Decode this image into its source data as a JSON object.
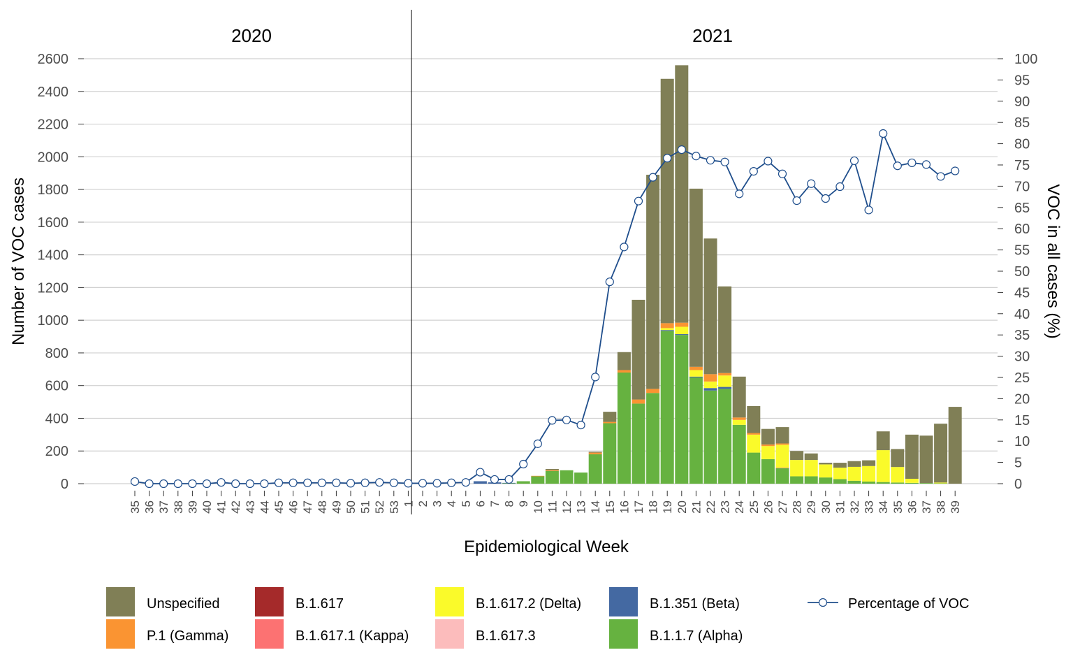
{
  "chart_data": {
    "type": "bar",
    "stacked": true,
    "secondary_series_type": "line",
    "year_labels": [
      "2020",
      "2021"
    ],
    "xlabel": "Epidemiological Week",
    "ylabel": "Number of VOC cases",
    "y2label": "VOC in all cases (%)",
    "ylim": [
      0,
      2600
    ],
    "yticks": [
      0,
      200,
      400,
      600,
      800,
      1000,
      1200,
      1400,
      1600,
      1800,
      2000,
      2200,
      2400,
      2600
    ],
    "y2lim": [
      0,
      100
    ],
    "y2ticks": [
      0,
      5,
      10,
      15,
      20,
      25,
      30,
      35,
      40,
      45,
      50,
      55,
      60,
      65,
      70,
      75,
      80,
      85,
      90,
      95,
      100
    ],
    "grid": true,
    "legend_position": "bottom",
    "categories": [
      "35",
      "36",
      "37",
      "38",
      "39",
      "40",
      "41",
      "42",
      "43",
      "44",
      "45",
      "46",
      "47",
      "48",
      "49",
      "50",
      "51",
      "52",
      "53",
      "1",
      "2",
      "3",
      "4",
      "5",
      "6",
      "7",
      "8",
      "9",
      "10",
      "11",
      "12",
      "13",
      "14",
      "15",
      "16",
      "17",
      "18",
      "19",
      "20",
      "21",
      "22",
      "23",
      "24",
      "25",
      "26",
      "27",
      "28",
      "29",
      "30",
      "31",
      "32",
      "33",
      "34",
      "35",
      "36",
      "37",
      "38",
      "39"
    ],
    "series": [
      {
        "name": "B.1.1.7 (Alpha)",
        "color": "#66b240",
        "values": [
          0,
          0,
          0,
          0,
          0,
          0,
          0,
          0,
          0,
          0,
          0,
          0,
          0,
          0,
          0,
          0,
          0,
          0,
          0,
          0,
          0,
          0,
          0,
          0,
          0,
          0,
          2,
          15,
          45,
          78,
          82,
          68,
          180,
          370,
          680,
          490,
          555,
          935,
          910,
          650,
          570,
          580,
          360,
          190,
          150,
          95,
          45,
          45,
          38,
          28,
          18,
          13,
          10,
          7,
          5,
          4,
          2,
          0
        ]
      },
      {
        "name": "B.1.351 (Beta)",
        "color": "#4469a2",
        "values": [
          0,
          0,
          0,
          0,
          0,
          0,
          0,
          0,
          0,
          0,
          0,
          0,
          0,
          0,
          0,
          0,
          0,
          0,
          0,
          0,
          0,
          0,
          0,
          0,
          15,
          8,
          3,
          0,
          0,
          0,
          0,
          0,
          0,
          0,
          0,
          0,
          0,
          5,
          5,
          5,
          15,
          12,
          0,
          0,
          0,
          0,
          0,
          0,
          0,
          0,
          0,
          0,
          0,
          0,
          0,
          0,
          0,
          0
        ]
      },
      {
        "name": "B.1.617",
        "color": "#a52a2a",
        "values": [
          0,
          0,
          0,
          0,
          0,
          0,
          0,
          0,
          0,
          0,
          0,
          0,
          0,
          0,
          0,
          0,
          0,
          0,
          0,
          0,
          0,
          0,
          0,
          0,
          0,
          0,
          0,
          0,
          0,
          0,
          0,
          0,
          0,
          0,
          0,
          0,
          0,
          0,
          0,
          0,
          0,
          0,
          0,
          0,
          0,
          0,
          0,
          0,
          0,
          0,
          0,
          0,
          0,
          0,
          0,
          0,
          0,
          0
        ]
      },
      {
        "name": "B.1.617.1 (Kappa)",
        "color": "#fc7272",
        "values": [
          0,
          0,
          0,
          0,
          0,
          0,
          0,
          0,
          0,
          0,
          0,
          0,
          0,
          0,
          0,
          0,
          0,
          0,
          0,
          0,
          0,
          0,
          0,
          0,
          0,
          0,
          0,
          0,
          0,
          0,
          0,
          0,
          0,
          0,
          0,
          0,
          0,
          0,
          0,
          0,
          0,
          0,
          0,
          0,
          0,
          3,
          0,
          0,
          0,
          0,
          0,
          0,
          0,
          0,
          0,
          0,
          0,
          0
        ]
      },
      {
        "name": "B.1.617.2 (Delta)",
        "color": "#fafa2a",
        "values": [
          0,
          0,
          0,
          0,
          0,
          0,
          0,
          0,
          0,
          0,
          0,
          0,
          0,
          0,
          0,
          0,
          0,
          0,
          0,
          0,
          0,
          0,
          0,
          0,
          0,
          0,
          0,
          0,
          0,
          0,
          0,
          0,
          0,
          0,
          0,
          0,
          0,
          12,
          45,
          40,
          40,
          70,
          30,
          110,
          80,
          140,
          100,
          100,
          80,
          70,
          85,
          95,
          195,
          95,
          25,
          0,
          5,
          0
        ]
      },
      {
        "name": "B.1.617.3",
        "color": "#fcbcbc",
        "values": [
          0,
          0,
          0,
          0,
          0,
          0,
          0,
          0,
          0,
          0,
          0,
          0,
          0,
          0,
          0,
          0,
          0,
          0,
          0,
          0,
          0,
          0,
          0,
          0,
          0,
          0,
          0,
          0,
          0,
          0,
          0,
          0,
          0,
          0,
          0,
          0,
          0,
          0,
          0,
          0,
          0,
          0,
          0,
          0,
          0,
          0,
          0,
          0,
          0,
          0,
          0,
          0,
          0,
          0,
          0,
          0,
          0,
          0
        ]
      },
      {
        "name": "P.1 (Gamma)",
        "color": "#fa9432",
        "values": [
          0,
          0,
          0,
          0,
          0,
          0,
          0,
          0,
          0,
          0,
          0,
          0,
          0,
          0,
          0,
          0,
          0,
          0,
          0,
          0,
          0,
          0,
          0,
          0,
          0,
          0,
          0,
          0,
          3,
          5,
          0,
          0,
          10,
          8,
          15,
          25,
          25,
          30,
          25,
          20,
          45,
          15,
          15,
          10,
          10,
          8,
          0,
          0,
          0,
          0,
          0,
          0,
          0,
          0,
          0,
          0,
          0,
          0
        ]
      },
      {
        "name": "Unspecified",
        "color": "#807f56",
        "values": [
          0,
          0,
          0,
          0,
          0,
          0,
          0,
          0,
          0,
          0,
          0,
          0,
          0,
          0,
          0,
          0,
          0,
          0,
          0,
          0,
          0,
          0,
          0,
          0,
          0,
          0,
          0,
          0,
          0,
          7,
          0,
          0,
          5,
          62,
          110,
          610,
          1310,
          1495,
          1575,
          1090,
          830,
          530,
          250,
          165,
          95,
          100,
          55,
          40,
          10,
          30,
          35,
          35,
          115,
          110,
          270,
          290,
          360,
          470
        ]
      }
    ],
    "line_series": {
      "name": "Percentage of VOC",
      "color": "#1f4e8c",
      "values": [
        0.5,
        0,
        0,
        0,
        0,
        0,
        0.3,
        0,
        0,
        0,
        0.2,
        0.2,
        0.2,
        0.2,
        0.2,
        0.1,
        0.2,
        0.3,
        0.2,
        0.1,
        0.1,
        0.1,
        0.2,
        0.3,
        2.7,
        1.0,
        1.0,
        4.6,
        9.4,
        14.9,
        15.0,
        13.8,
        25.1,
        47.5,
        55.7,
        66.5,
        72.1,
        76.6,
        78.6,
        77.1,
        76.1,
        75.7,
        68.2,
        73.5,
        75.9,
        72.9,
        66.6,
        70.6,
        67.1,
        69.9,
        76.0,
        64.4,
        82.4,
        74.8,
        75.5,
        75.1,
        72.3,
        73.6
      ]
    }
  }
}
